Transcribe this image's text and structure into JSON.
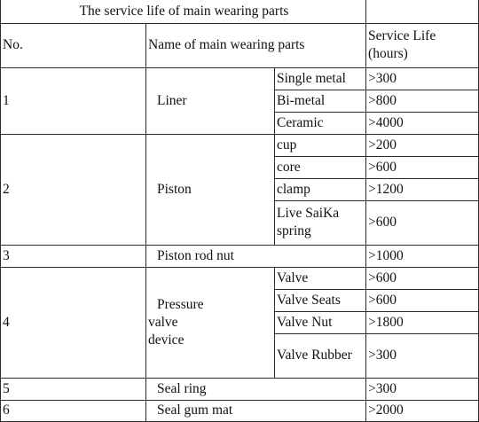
{
  "title": "The service life of main wearing parts",
  "headers": {
    "no": "No.",
    "name": "Name of main wearing parts",
    "life": "Service Life (hours)"
  },
  "rows": [
    {
      "no": "1",
      "name": "Liner",
      "parts": [
        {
          "part": "Single metal",
          "life": ">300"
        },
        {
          "part": "Bi-metal",
          "life": ">800"
        },
        {
          "part": "Ceramic",
          "life": ">4000"
        }
      ]
    },
    {
      "no": "2",
      "name": "Piston",
      "parts": [
        {
          "part": "cup",
          "life": ">200"
        },
        {
          "part": "core",
          "life": ">600"
        },
        {
          "part": "clamp",
          "life": ">1200"
        },
        {
          "part": "Live SaiKa spring",
          "life": ">600"
        }
      ]
    },
    {
      "no": "3",
      "name": "Piston rod nut",
      "life": ">1000"
    },
    {
      "no": "4",
      "name": "Pressure valve device",
      "parts": [
        {
          "part": "Valve",
          "life": ">600"
        },
        {
          "part": "Valve Seats",
          "life": ">600"
        },
        {
          "part": "Valve Nut",
          "life": ">1800"
        },
        {
          "part": "Valve Rubber",
          "life": ">300"
        }
      ]
    },
    {
      "no": "5",
      "name": "Seal ring",
      "life": ">300"
    },
    {
      "no": "6",
      "name": "Seal gum mat",
      "life": ">2000"
    }
  ]
}
